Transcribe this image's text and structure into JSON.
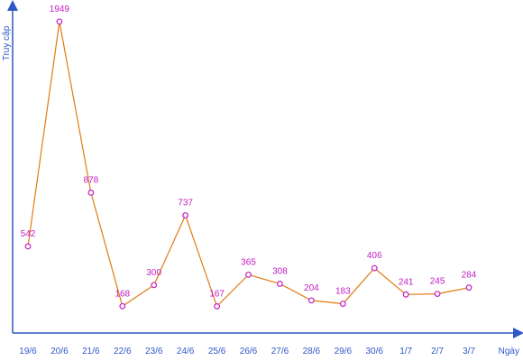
{
  "chart_data": {
    "type": "line",
    "xlabel": "Ngày",
    "ylabel": "Truy cập",
    "categories": [
      "19/6",
      "20/6",
      "21/6",
      "22/6",
      "23/6",
      "24/6",
      "25/6",
      "26/6",
      "27/6",
      "28/6",
      "29/6",
      "30/6",
      "1/7",
      "2/7",
      "3/7"
    ],
    "series": [
      {
        "values": [
          542,
          1949,
          878,
          168,
          300,
          737,
          167,
          365,
          308,
          204,
          183,
          406,
          241,
          245,
          284
        ]
      }
    ],
    "ylim": [
      0,
      2050
    ],
    "grid": false,
    "legend": "none",
    "colors": {
      "axis": "#2f57c8",
      "line": "#e07b12",
      "marker": "#c21dc2",
      "labels": "#c21dc2"
    }
  }
}
